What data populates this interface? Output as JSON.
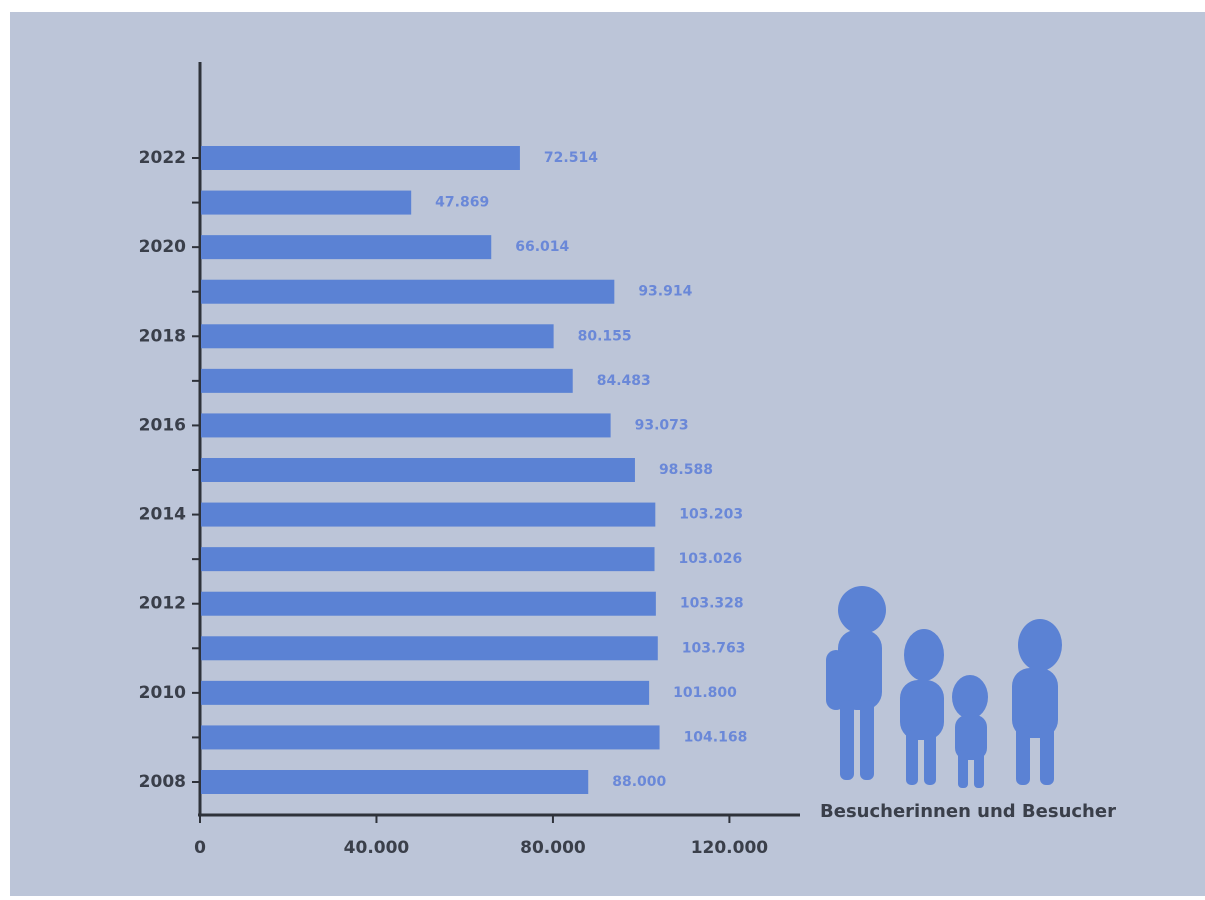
{
  "chart_data": {
    "type": "bar",
    "orientation": "horizontal",
    "categories": [
      "2022",
      null,
      "2020",
      null,
      "2018",
      null,
      "2016",
      null,
      "2014",
      null,
      "2012",
      null,
      "2010",
      null,
      "2008"
    ],
    "values": [
      72514,
      47869,
      66014,
      93914,
      80155,
      84483,
      93073,
      98588,
      103203,
      103026,
      103328,
      103763,
      101800,
      104168,
      88000
    ],
    "value_labels": [
      "72.514",
      "47.869",
      "66.014",
      "93.914",
      "80.155",
      "84.483",
      "93.073",
      "98.588",
      "103.203",
      "103.026",
      "103.328",
      "103.763",
      "101.800",
      "104.168",
      "88.000"
    ],
    "color": "#5b82d4",
    "xlim": [
      0,
      136000
    ],
    "xticks": [
      0,
      {
        "value": 40000,
        "label": "40.000"
      },
      {
        "value": 80000,
        "label": "80.000"
      },
      {
        "value": 120000,
        "label": "120.000"
      }
    ],
    "annotation": "Besucherinnen und Besucher"
  }
}
